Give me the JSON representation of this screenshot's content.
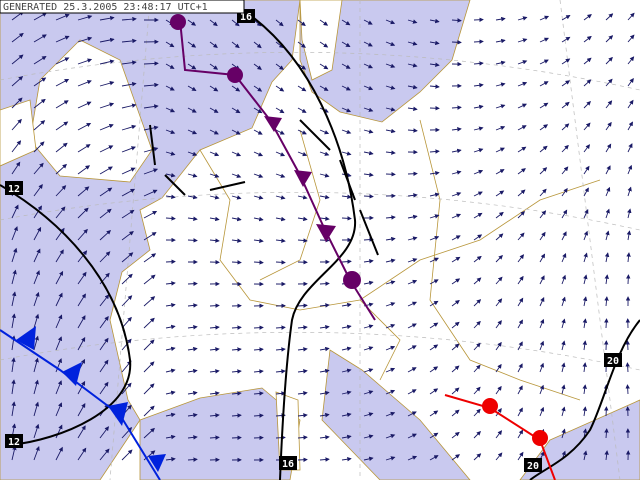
{
  "header": {
    "generated": "GENERATED 25.3.2005 23:48:17 UTC+1"
  },
  "isolines": [
    {
      "label": "16"
    },
    {
      "label": "12"
    },
    {
      "label": "12"
    },
    {
      "label": "16"
    },
    {
      "label": "20"
    },
    {
      "label": "20"
    }
  ]
}
